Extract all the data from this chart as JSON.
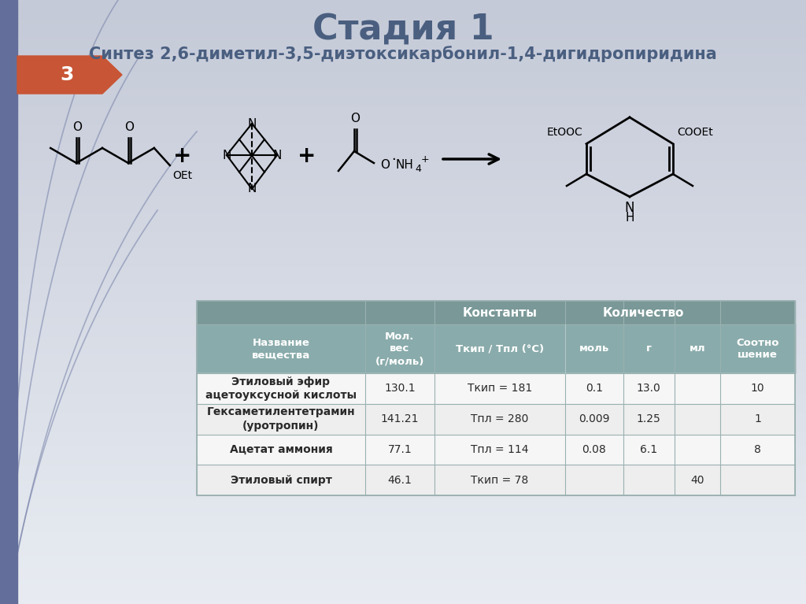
{
  "title": "Стадия 1",
  "subtitle": "Синтез 2,6-диметил-3,5-диэтоксикарбонил-1,4-дигидропиридина",
  "title_color": "#4a5f80",
  "subtitle_color": "#4a5f80",
  "slide_number": "3",
  "slide_number_bg": "#c85535",
  "bg_top_color": "#dde0e8",
  "bg_bottom_color": "#c8cdd8",
  "left_bar_color": "#6672a0",
  "table_header_bg": "#7a9898",
  "table_header_text": "#ffffff",
  "table_row_bg_light": "#f8f8f8",
  "table_row_bg_dark": "#eeeeee",
  "table_border_color": "#aabbbb",
  "col_group1": "Константы",
  "col_group2": "Количество",
  "rows": [
    [
      "Этиловый эфир\nацетоуксусной кислоты",
      "130.1",
      "Ткип = 181",
      "0.1",
      "13.0",
      "",
      "10"
    ],
    [
      "Гексаметилентетрамин\n(уротропин)",
      "141.21",
      "Тпл = 280",
      "0.009",
      "1.25",
      "",
      "1"
    ],
    [
      "Ацетат аммония",
      "77.1",
      "Тпл = 114",
      "0.08",
      "6.1",
      "",
      "8"
    ],
    [
      "Этиловый спирт",
      "46.1",
      "Ткип = 78",
      "",
      "",
      "40",
      ""
    ]
  ]
}
